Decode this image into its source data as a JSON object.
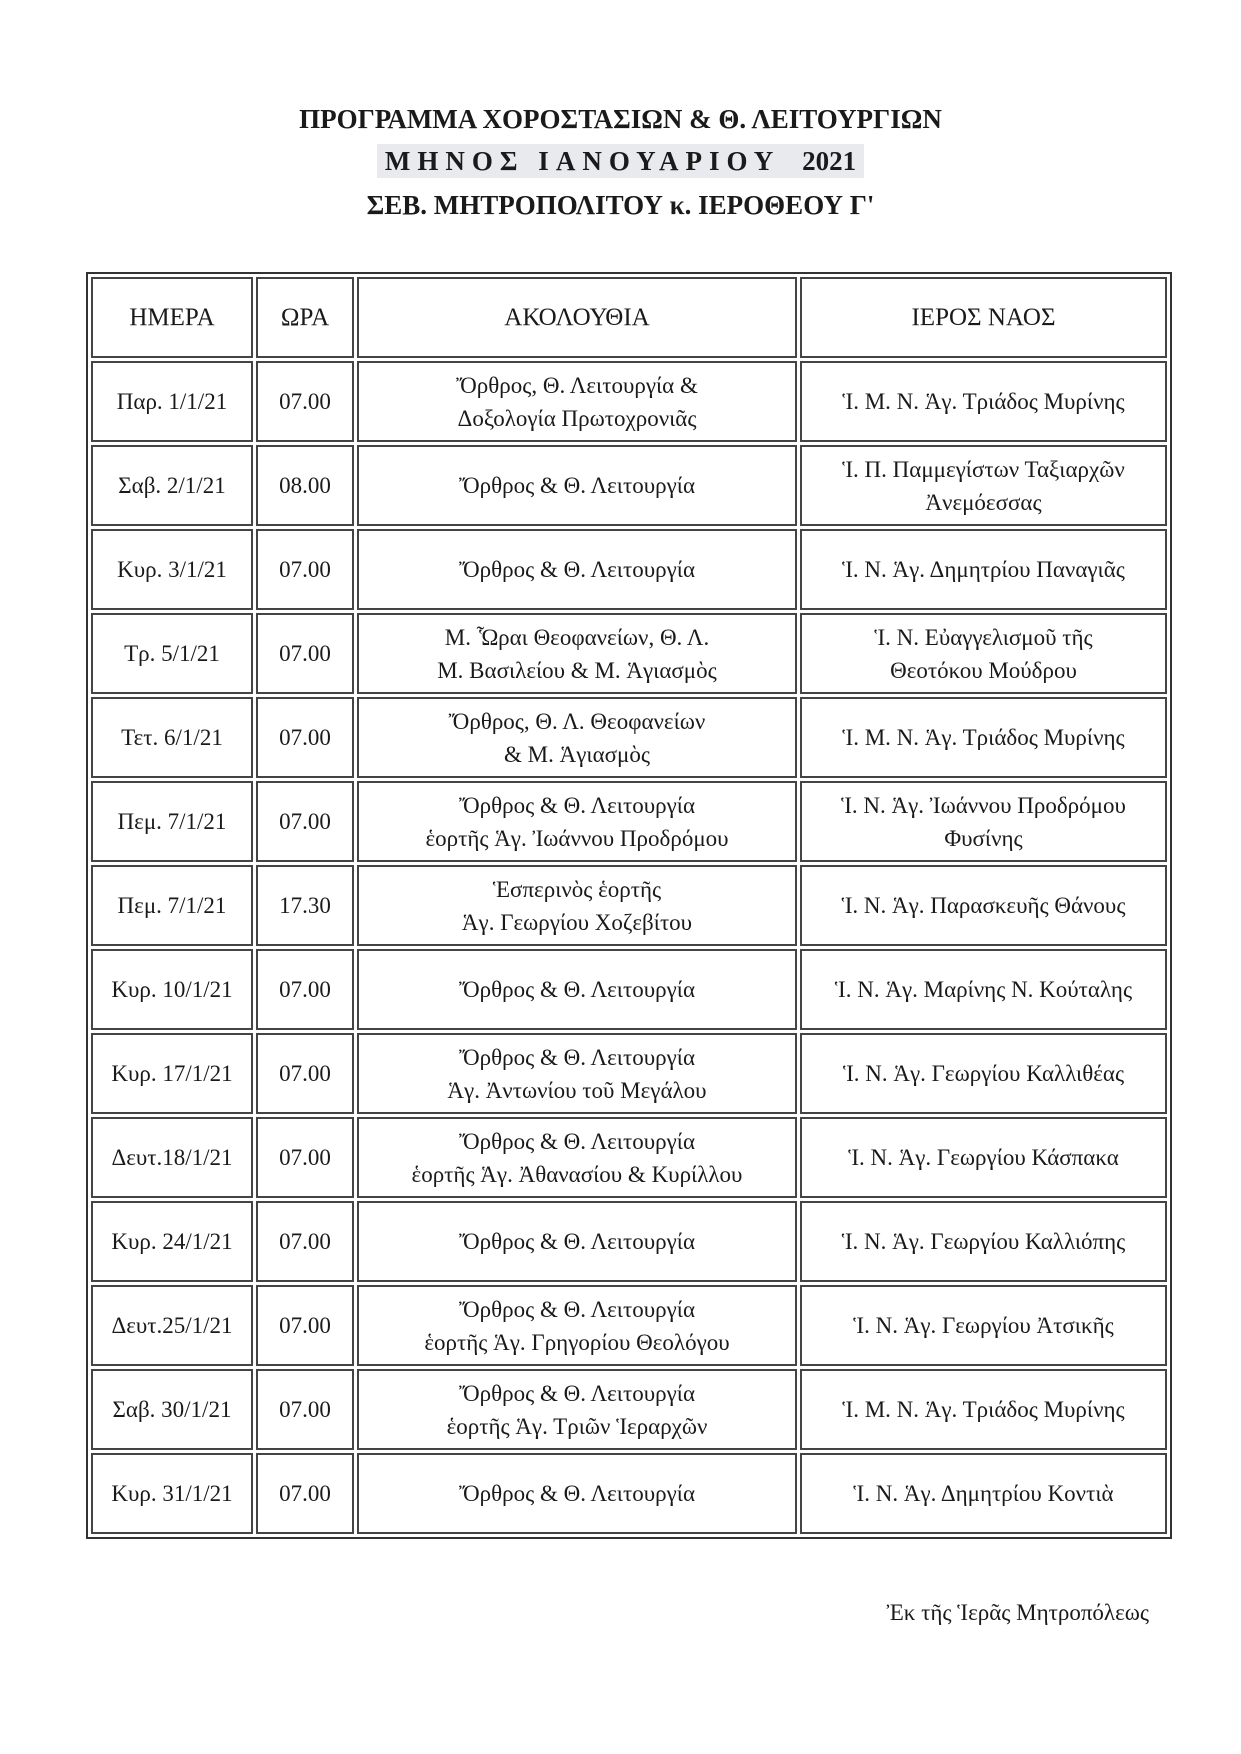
{
  "header": {
    "line1": "ΠΡΟΓΡΑΜΜΑ ΧΟΡΟΣΤΑΣΙΩΝ & Θ. ΛΕΙΤΟΥΡΓΙΩΝ",
    "line2_month": "ΜΗΝΟΣ ΙΑΝΟΥΑΡΙΟΥ",
    "line2_year": "2021",
    "line3": "ΣΕΒ. ΜΗΤΡΟΠΟΛΙΤΟΥ κ. ΙΕΡΟΘΕΟΥ Γ'"
  },
  "table": {
    "columns": [
      "ΗΜΕΡΑ",
      "ΩΡΑ",
      "ΑΚΟΛΟΥΘΙΑ",
      "ΙΕΡΟΣ ΝΑΟΣ"
    ],
    "rows": [
      {
        "day": "Παρ. 1/1/21",
        "time": "07.00",
        "service": [
          "Ὄρθρος, Θ. Λειτουργία &",
          "Δοξολογία Πρωτοχρονιᾶς"
        ],
        "church": [
          "Ἱ. Μ. Ν. Ἁγ. Τριάδος Μυρίνης"
        ]
      },
      {
        "day": "Σαβ. 2/1/21",
        "time": "08.00",
        "service": [
          "Ὄρθρος & Θ. Λειτουργία"
        ],
        "church": [
          "Ἱ. Π. Παμμεγίστων Ταξιαρχῶν",
          "Ἀνεμόεσσας"
        ]
      },
      {
        "day": "Κυρ. 3/1/21",
        "time": "07.00",
        "service": [
          "Ὄρθρος & Θ. Λειτουργία"
        ],
        "church": [
          "Ἱ. Ν. Ἁγ. Δημητρίου Παναγιᾶς"
        ]
      },
      {
        "day": "Τρ. 5/1/21",
        "time": "07.00",
        "service": [
          "Μ. Ὧραι Θεοφανείων, Θ. Λ.",
          "Μ. Βασιλείου & Μ. Ἁγιασμὸς"
        ],
        "church": [
          "Ἱ. Ν. Εὐαγγελισμοῦ τῆς",
          "Θεοτόκου Μούδρου"
        ]
      },
      {
        "day": "Τετ. 6/1/21",
        "time": "07.00",
        "service": [
          "Ὄρθρος, Θ. Λ. Θεοφανείων",
          "& Μ. Ἁγιασμὸς"
        ],
        "church": [
          "Ἱ. Μ. Ν. Ἁγ. Τριάδος Μυρίνης"
        ]
      },
      {
        "day": "Πεμ. 7/1/21",
        "time": "07.00",
        "service": [
          "Ὄρθρος & Θ. Λειτουργία",
          "ἑορτῆς Ἁγ. Ἰωάννου Προδρόμου"
        ],
        "church": [
          "Ἱ. Ν. Ἁγ. Ἰωάννου Προδρόμου",
          "Φυσίνης"
        ]
      },
      {
        "day": "Πεμ. 7/1/21",
        "time": "17.30",
        "service": [
          "Ἑσπερινὸς ἑορτῆς",
          "Ἁγ. Γεωργίου Χοζεβίτου"
        ],
        "church": [
          "Ἱ. Ν. Ἁγ. Παρασκευῆς Θάνους"
        ]
      },
      {
        "day": "Κυρ. 10/1/21",
        "time": "07.00",
        "service": [
          "Ὄρθρος & Θ. Λειτουργία"
        ],
        "church": [
          "Ἱ. Ν. Ἁγ. Μαρίνης Ν. Κούταλης"
        ]
      },
      {
        "day": "Κυρ. 17/1/21",
        "time": "07.00",
        "service": [
          "Ὄρθρος & Θ. Λειτουργία",
          "Ἁγ. Ἀντωνίου τοῦ Μεγάλου"
        ],
        "church": [
          "Ἱ. Ν. Ἁγ. Γεωργίου Καλλιθέας"
        ]
      },
      {
        "day": "Δευτ.18/1/21",
        "time": "07.00",
        "service": [
          "Ὄρθρος & Θ. Λειτουργία",
          "ἑορτῆς Ἁγ. Ἀθανασίου & Κυρίλλου"
        ],
        "church": [
          "Ἱ. Ν. Ἁγ. Γεωργίου Κάσπακα"
        ]
      },
      {
        "day": "Κυρ. 24/1/21",
        "time": "07.00",
        "service": [
          "Ὄρθρος & Θ. Λειτουργία"
        ],
        "church": [
          "Ἱ. Ν. Ἁγ. Γεωργίου Καλλιόπης"
        ]
      },
      {
        "day": "Δευτ.25/1/21",
        "time": "07.00",
        "service": [
          "Ὄρθρος & Θ. Λειτουργία",
          "ἑορτῆς Ἁγ. Γρηγορίου Θεολόγου"
        ],
        "church": [
          "Ἱ. Ν. Ἁγ. Γεωργίου Ἀτσικῆς"
        ]
      },
      {
        "day": "Σαβ. 30/1/21",
        "time": "07.00",
        "service": [
          "Ὄρθρος & Θ. Λειτουργία",
          "ἑορτῆς Ἁγ. Τριῶν Ἱεραρχῶν"
        ],
        "church": [
          "Ἱ. Μ. Ν. Ἁγ. Τριάδος Μυρίνης"
        ]
      },
      {
        "day": "Κυρ. 31/1/21",
        "time": "07.00",
        "service": [
          "Ὄρθρος & Θ. Λειτουργία"
        ],
        "church": [
          "Ἱ. Ν. Ἁγ. Δημητρίου Κοντιὰ"
        ]
      }
    ]
  },
  "footer": "Ἐκ τῆς Ἱερᾶς Μητροπόλεως"
}
